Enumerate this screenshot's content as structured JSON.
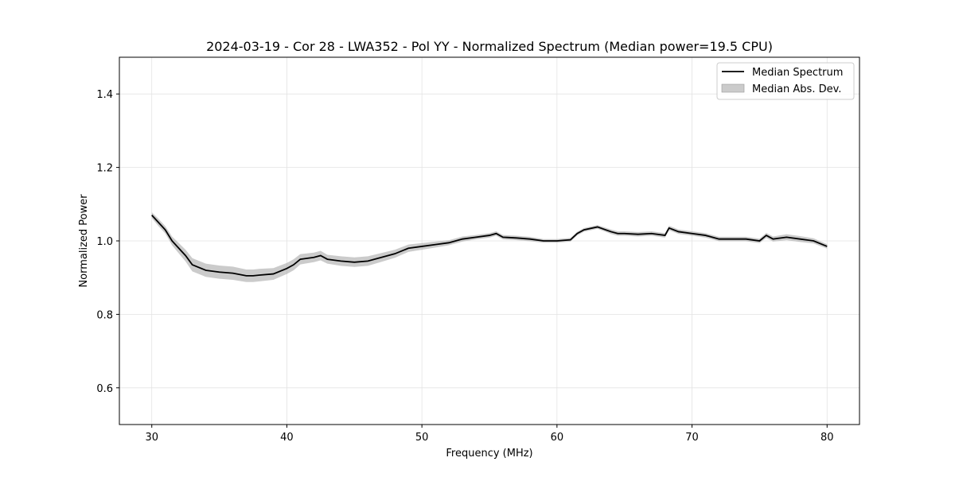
{
  "chart_data": {
    "type": "line",
    "title": "2024-03-19 - Cor 28 - LWA352 - Pol YY - Normalized Spectrum (Median power=19.5 CPU)",
    "xlabel": "Frequency (MHz)",
    "ylabel": "Normalized Power",
    "xlim": [
      27.6,
      82.4
    ],
    "ylim": [
      0.5,
      1.5
    ],
    "xticks": [
      30,
      40,
      50,
      60,
      70,
      80
    ],
    "yticks": [
      0.6,
      0.8,
      1.0,
      1.2,
      1.4
    ],
    "grid": true,
    "legend_position": "top-right",
    "legend": [
      "Median Spectrum",
      "Median Abs. Dev."
    ],
    "colors": {
      "line": "#000000",
      "band": "#a9a9a9"
    },
    "series": [
      {
        "name": "Median Spectrum",
        "x": [
          30,
          30.5,
          31,
          31.5,
          32,
          32.5,
          33,
          34,
          35,
          36,
          37,
          37.5,
          38,
          39,
          40,
          40.5,
          41,
          42,
          42.5,
          43,
          44,
          45,
          46,
          47,
          48,
          49,
          50,
          51,
          52,
          53,
          54,
          55,
          55.5,
          56,
          57,
          58,
          59,
          60,
          61,
          61.5,
          62,
          63,
          64,
          64.5,
          65,
          66,
          67,
          68,
          68.3,
          69,
          70,
          71,
          72,
          73,
          74,
          75,
          75.5,
          76,
          77,
          78,
          79,
          80
        ],
        "y": [
          1.07,
          1.05,
          1.03,
          1.0,
          0.98,
          0.96,
          0.935,
          0.92,
          0.915,
          0.912,
          0.905,
          0.905,
          0.907,
          0.91,
          0.925,
          0.935,
          0.95,
          0.955,
          0.96,
          0.95,
          0.945,
          0.942,
          0.945,
          0.955,
          0.965,
          0.98,
          0.985,
          0.99,
          0.995,
          1.005,
          1.01,
          1.015,
          1.02,
          1.01,
          1.008,
          1.005,
          1.0,
          1.0,
          1.003,
          1.02,
          1.03,
          1.038,
          1.025,
          1.02,
          1.02,
          1.018,
          1.02,
          1.015,
          1.035,
          1.025,
          1.02,
          1.015,
          1.005,
          1.005,
          1.005,
          1.0,
          1.015,
          1.005,
          1.01,
          1.005,
          1.0,
          0.985
        ]
      },
      {
        "name": "Median Abs. Dev.",
        "x": [
          30,
          30.5,
          31,
          31.5,
          32,
          32.5,
          33,
          34,
          35,
          36,
          37,
          37.5,
          38,
          39,
          40,
          40.5,
          41,
          42,
          42.5,
          43,
          44,
          45,
          46,
          47,
          48,
          49,
          50,
          51,
          52,
          53,
          54,
          55,
          55.5,
          56,
          57,
          58,
          59,
          60,
          61,
          61.5,
          62,
          63,
          64,
          64.5,
          65,
          66,
          67,
          68,
          68.3,
          69,
          70,
          71,
          72,
          73,
          74,
          75,
          75.5,
          76,
          77,
          78,
          79,
          80
        ],
        "lower": [
          1.062,
          1.04,
          1.02,
          0.988,
          0.966,
          0.944,
          0.917,
          0.902,
          0.897,
          0.894,
          0.888,
          0.888,
          0.89,
          0.894,
          0.91,
          0.92,
          0.936,
          0.942,
          0.947,
          0.938,
          0.932,
          0.929,
          0.932,
          0.943,
          0.954,
          0.97,
          0.976,
          0.982,
          0.988,
          0.998,
          1.004,
          1.009,
          1.014,
          1.004,
          1.002,
          0.999,
          0.995,
          0.995,
          0.998,
          1.015,
          1.025,
          1.033,
          1.019,
          1.014,
          1.014,
          1.012,
          1.014,
          1.009,
          1.029,
          1.019,
          1.014,
          1.009,
          0.999,
          0.999,
          0.999,
          0.994,
          1.008,
          0.998,
          1.002,
          0.997,
          0.993,
          0.979
        ],
        "upper": [
          1.078,
          1.06,
          1.04,
          1.012,
          0.994,
          0.976,
          0.953,
          0.938,
          0.933,
          0.93,
          0.922,
          0.922,
          0.924,
          0.926,
          0.94,
          0.95,
          0.964,
          0.968,
          0.973,
          0.962,
          0.958,
          0.955,
          0.958,
          0.967,
          0.976,
          0.99,
          0.994,
          0.998,
          1.002,
          1.012,
          1.016,
          1.021,
          1.026,
          1.016,
          1.014,
          1.011,
          1.005,
          1.005,
          1.008,
          1.025,
          1.035,
          1.043,
          1.031,
          1.026,
          1.026,
          1.024,
          1.026,
          1.021,
          1.041,
          1.031,
          1.026,
          1.021,
          1.011,
          1.011,
          1.011,
          1.006,
          1.022,
          1.012,
          1.018,
          1.013,
          1.007,
          0.991
        ]
      }
    ]
  }
}
